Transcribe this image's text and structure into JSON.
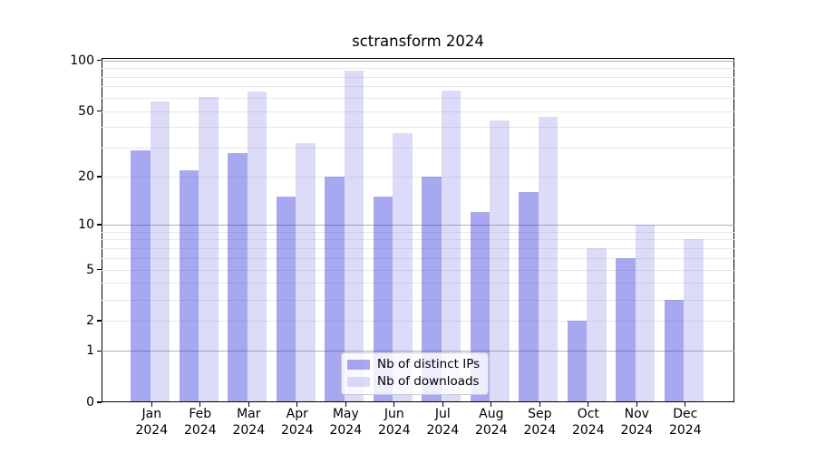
{
  "chart_data": {
    "type": "bar",
    "title": "sctransform 2024",
    "categories": [
      "Jan",
      "Feb",
      "Mar",
      "Apr",
      "May",
      "Jun",
      "Jul",
      "Aug",
      "Sep",
      "Oct",
      "Nov",
      "Dec"
    ],
    "category_year": "2024",
    "series": [
      {
        "name": "Nb of distinct IPs",
        "color": "#a8a8f0",
        "fill_rgba": "rgba(62,62,222,0.45)",
        "values": [
          29,
          22,
          28,
          15,
          20,
          15,
          20,
          12,
          16,
          2,
          6,
          3
        ]
      },
      {
        "name": "Nb of downloads",
        "color": "#dcdcf8",
        "fill_rgba": "rgba(115,115,227,0.25)",
        "values": [
          57,
          61,
          65,
          32,
          87,
          37,
          66,
          44,
          46,
          7,
          10,
          8
        ]
      }
    ],
    "yscale": "log1p",
    "ylim": [
      0,
      104
    ],
    "ytick_labels": [
      0,
      1,
      2,
      5,
      10,
      20,
      50,
      100
    ],
    "grid_major": [
      1,
      10,
      100
    ],
    "grid_minor": [
      2,
      3,
      4,
      5,
      6,
      7,
      8,
      9,
      20,
      30,
      40,
      50,
      60,
      70,
      80,
      90
    ],
    "grid_color_major": "#b0b0b0",
    "grid_color_minor": "#e8e8e8",
    "legend_position": "lower center",
    "xlabel": "",
    "ylabel": ""
  }
}
